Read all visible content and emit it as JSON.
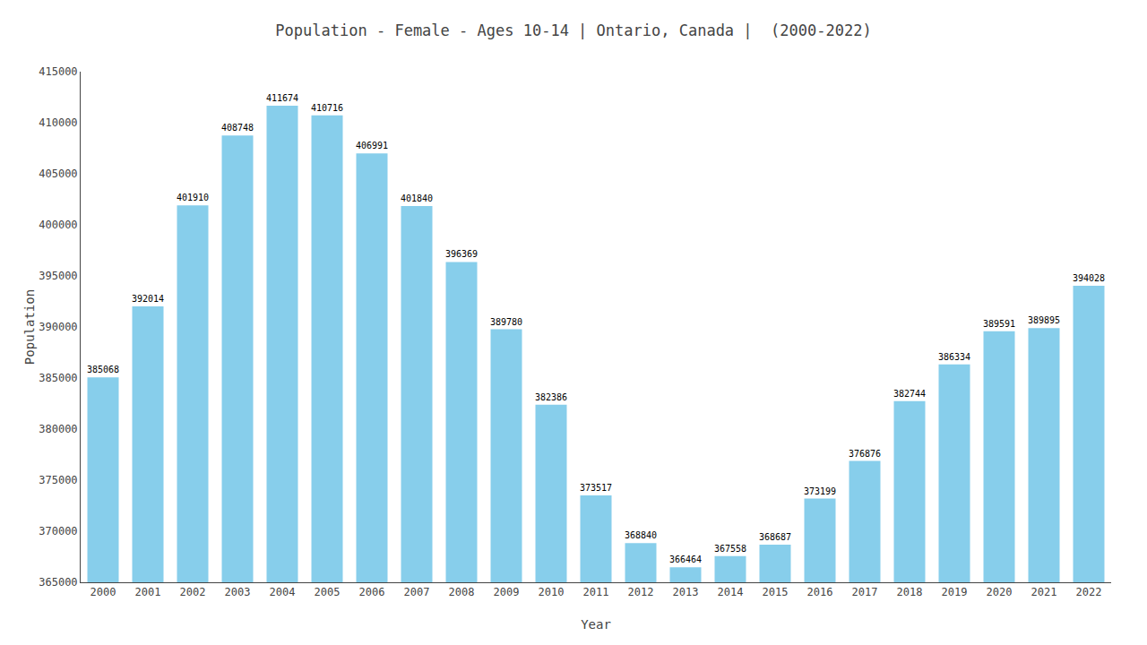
{
  "chart_data": {
    "type": "bar",
    "title": "Population - Female - Ages 10-14 | Ontario, Canada |  (2000-2022)",
    "xlabel": "Year",
    "ylabel": "Population",
    "categories": [
      "2000",
      "2001",
      "2002",
      "2003",
      "2004",
      "2005",
      "2006",
      "2007",
      "2008",
      "2009",
      "2010",
      "2011",
      "2012",
      "2013",
      "2014",
      "2015",
      "2016",
      "2017",
      "2018",
      "2019",
      "2020",
      "2021",
      "2022"
    ],
    "values": [
      385068,
      392014,
      401910,
      408748,
      411674,
      410716,
      406991,
      401840,
      396369,
      389780,
      382386,
      373517,
      368840,
      366464,
      367558,
      368687,
      373199,
      376876,
      382744,
      386334,
      389591,
      389895,
      394028
    ],
    "color": "#87CEEB",
    "ylim": [
      365000,
      415000
    ],
    "yticks": [
      365000,
      370000,
      375000,
      380000,
      385000,
      390000,
      395000,
      400000,
      405000,
      410000,
      415000
    ],
    "grid": false,
    "data_labels": true
  }
}
